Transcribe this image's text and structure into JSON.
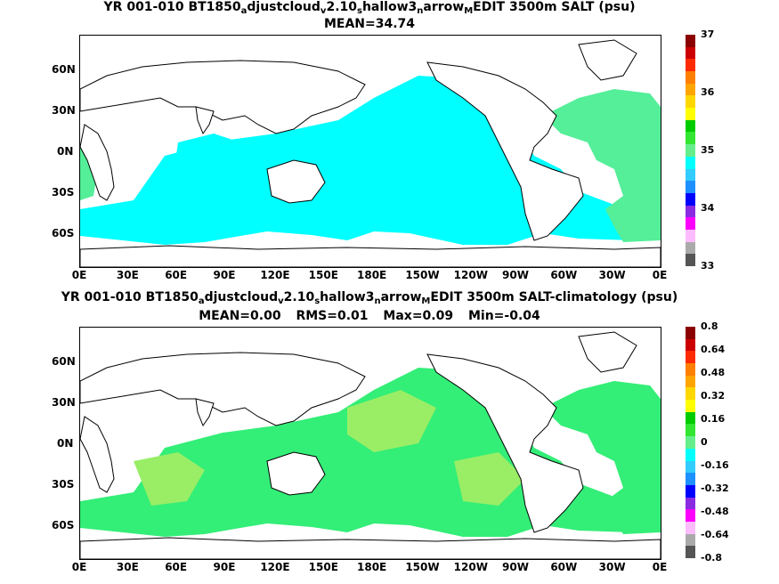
{
  "panels": [
    {
      "title_parts": [
        "YR 001-010 BT1850",
        "a",
        "djustcloud",
        "v",
        "2.10",
        "s",
        "hallow3",
        "n",
        "arrow",
        "M",
        "EDIT 3500m SALT (psu)"
      ],
      "stats": [
        "MEAN=34.74"
      ],
      "colorbar_labels": [
        "37",
        "36",
        "35",
        "34",
        "33"
      ],
      "colorbar_colors": [
        "#8b0000",
        "#cc0000",
        "#ff2a00",
        "#ff7f00",
        "#ffa500",
        "#ffd700",
        "#ffff00",
        "#00cc00",
        "#32e632",
        "#66ee8c",
        "#00ffff",
        "#33ccff",
        "#1e90ff",
        "#0000ff",
        "#8a2be2",
        "#ff00ff",
        "#ffbbff",
        "#aaaaaa",
        "#555555"
      ],
      "fill_colors": [
        "#00ffff",
        "#55ee99"
      ]
    },
    {
      "title_parts": [
        "YR 001-010 BT1850",
        "a",
        "djustcloud",
        "v",
        "2.10",
        "s",
        "hallow3",
        "n",
        "arrow",
        "M",
        "EDIT 3500m SALT-climatology (psu)"
      ],
      "stats": [
        "MEAN=0.00",
        "RMS=0.01",
        "Max=0.09",
        "Min=-0.04"
      ],
      "colorbar_labels": [
        "0.8",
        "0.64",
        "0.48",
        "0.32",
        "0.16",
        "0",
        "-0.16",
        "-0.32",
        "-0.48",
        "-0.64",
        "-0.8"
      ],
      "colorbar_colors": [
        "#8b0000",
        "#cc0000",
        "#ff2a00",
        "#ff7f00",
        "#ffa500",
        "#ffd700",
        "#ffff00",
        "#00cc00",
        "#32e632",
        "#66ee8c",
        "#00ffff",
        "#33ccff",
        "#1e90ff",
        "#0000ff",
        "#8a2be2",
        "#ff00ff",
        "#ffbbff",
        "#aaaaaa",
        "#555555"
      ],
      "fill_colors": [
        "#33ee77",
        "#99ee66"
      ]
    }
  ],
  "lat_labels": [
    "60N",
    "30N",
    "0N",
    "30S",
    "60S"
  ],
  "lon_labels": [
    "0E",
    "30E",
    "60E",
    "90E",
    "120E",
    "150E",
    "180E",
    "150W",
    "120W",
    "90W",
    "60W",
    "30W",
    "0E"
  ]
}
